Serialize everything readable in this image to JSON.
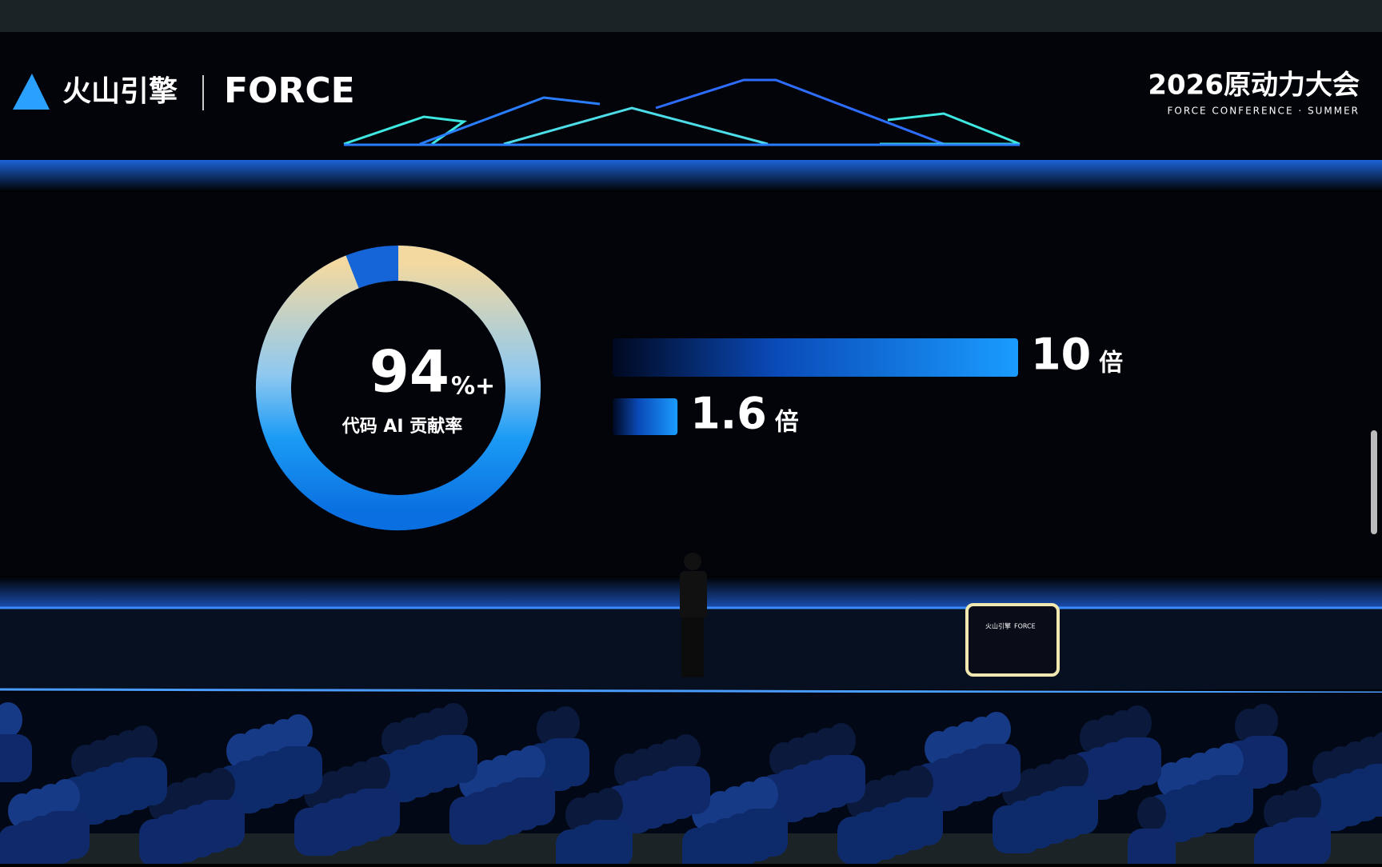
{
  "header": {
    "brand": "火山引擎",
    "product": "FORCE",
    "event": "2026原动力大会",
    "event_subtitle": "FORCE CONFERENCE · SUMMER"
  },
  "slide": {
    "donut": {
      "value": 94,
      "suffix": "%+",
      "caption": "代码 AI 贡献率",
      "color": "#1565d8"
    },
    "bars": [
      {
        "value": 10,
        "unit": "倍"
      },
      {
        "value": 1.6,
        "unit": "倍"
      }
    ],
    "bar_color": "#1a8cff"
  },
  "podium": {
    "brand": "火山引擎",
    "product": "FORCE"
  }
}
